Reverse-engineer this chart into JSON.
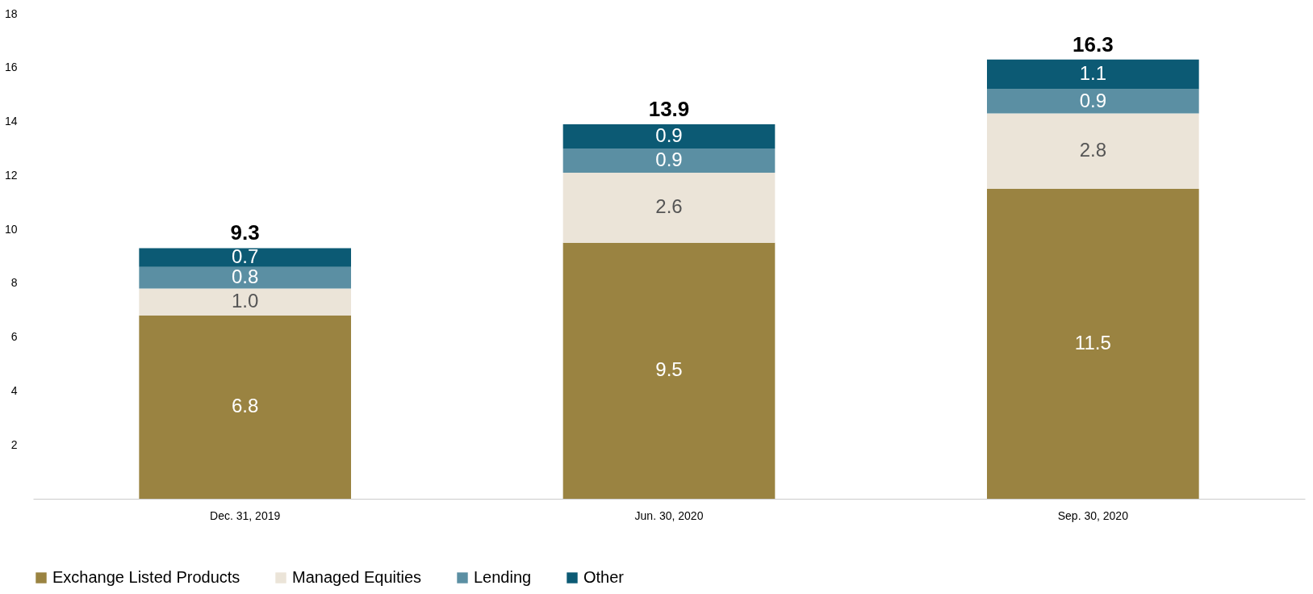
{
  "chart_data": {
    "type": "bar",
    "stacked": true,
    "categories": [
      "Dec. 31, 2019",
      "Jun. 30, 2020",
      "Sep. 30, 2020"
    ],
    "series": [
      {
        "name": "Exchange Listed Products",
        "color": "#9a8341",
        "values": [
          6.8,
          9.5,
          11.5
        ],
        "value_labels": [
          "6.8",
          "9.5",
          "11.5"
        ]
      },
      {
        "name": "Managed Equities",
        "color": "#ebe4d8",
        "values": [
          1.0,
          2.6,
          2.8
        ],
        "value_labels": [
          "1.0",
          "2.6",
          "2.8"
        ]
      },
      {
        "name": "Lending",
        "color": "#5b8fa3",
        "values": [
          0.8,
          0.9,
          0.9
        ],
        "value_labels": [
          "0.8",
          "0.9",
          "0.9"
        ]
      },
      {
        "name": "Other",
        "color": "#0c5a74",
        "values": [
          0.7,
          0.9,
          1.1
        ],
        "value_labels": [
          "0.7",
          "0.9",
          "1.1"
        ]
      }
    ],
    "ylim": [
      0,
      18
    ],
    "yticks": [
      2,
      4,
      6,
      8,
      10,
      12,
      14,
      16,
      18
    ],
    "totals": [
      "9.3",
      "13.9",
      "16.3"
    ],
    "legend": "bottom",
    "grid": false
  }
}
